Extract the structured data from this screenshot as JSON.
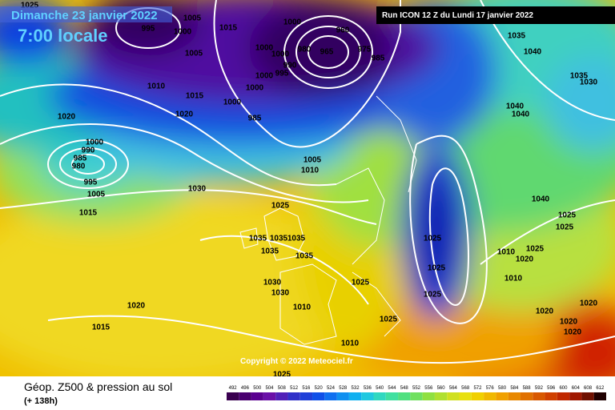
{
  "header": {
    "date": "Dimanche 23 janvier 2022",
    "time": "7:00 locale",
    "run": "Run ICON 12 Z du Lundi 17 janvier 2022",
    "copyright": "Copyright © 2022 Meteociel.fr"
  },
  "footer": {
    "title": "Géop. Z500 & pression au sol",
    "lead": "(+ 138h)"
  },
  "legend": {
    "levels": [
      492,
      496,
      500,
      504,
      508,
      512,
      516,
      520,
      524,
      528,
      532,
      536,
      540,
      544,
      548,
      552,
      556,
      560,
      564,
      568,
      572,
      576,
      580,
      584,
      588,
      592,
      596,
      600,
      604,
      608,
      612
    ]
  },
  "isobar_labels": [
    1025,
    995,
    1005,
    1000,
    1005,
    1015,
    1000,
    960,
    1000,
    1000,
    980,
    965,
    975,
    985,
    990,
    995,
    1000,
    1000,
    1000,
    985,
    1010,
    1015,
    1020,
    1020,
    1000,
    990,
    985,
    980,
    995,
    1005,
    1015,
    1030,
    1005,
    1010,
    1025,
    1035,
    1035,
    1035,
    1035,
    1035,
    1030,
    1030,
    1010,
    1025,
    1025,
    1025,
    1025,
    1025,
    1020,
    1015,
    1010,
    1025,
    1035,
    1040,
    1035,
    1030,
    1040,
    1040,
    1040,
    1025,
    1025,
    1010,
    1020,
    1025,
    1010,
    1020,
    1020,
    1020,
    1020
  ]
}
